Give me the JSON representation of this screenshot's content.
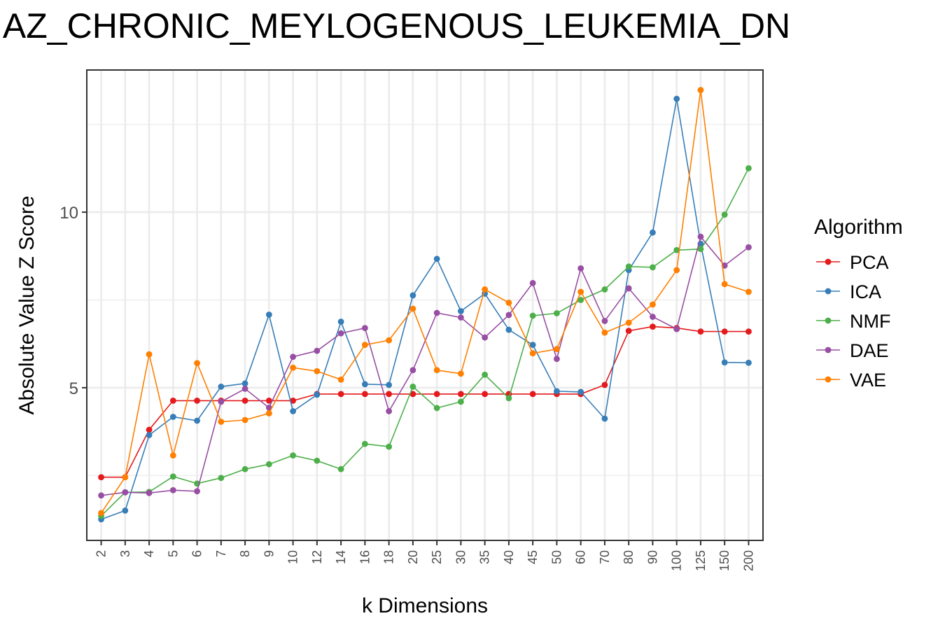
{
  "chart_data": {
    "type": "line",
    "title": "IAZ_CHRONIC_MEYLOGENOUS_LEUKEMIA_DN",
    "xlabel": "k Dimensions",
    "ylabel": "Absolute Value Z Score",
    "categories": [
      "2",
      "3",
      "4",
      "5",
      "6",
      "7",
      "8",
      "9",
      "10",
      "12",
      "14",
      "16",
      "18",
      "20",
      "25",
      "30",
      "35",
      "40",
      "45",
      "50",
      "60",
      "70",
      "80",
      "90",
      "100",
      "125",
      "150",
      "200"
    ],
    "y_ticks": [
      5,
      10
    ],
    "ylim": [
      0.65,
      14.05
    ],
    "grid": true,
    "legend": {
      "title": "Algorithm",
      "position": "right"
    },
    "series": [
      {
        "name": "PCA",
        "color": "#e41a1c",
        "values": [
          2.45,
          2.45,
          3.8,
          4.63,
          4.63,
          4.63,
          4.63,
          4.63,
          4.63,
          4.82,
          4.82,
          4.82,
          4.82,
          4.82,
          4.82,
          4.82,
          4.82,
          4.82,
          4.82,
          4.82,
          4.82,
          5.08,
          6.62,
          6.74,
          6.7,
          6.6,
          6.6,
          6.6
        ]
      },
      {
        "name": "ICA",
        "color": "#377eb8",
        "values": [
          1.25,
          1.5,
          3.65,
          4.17,
          4.06,
          5.03,
          5.12,
          7.08,
          4.33,
          4.8,
          6.88,
          5.1,
          5.08,
          7.63,
          8.67,
          7.18,
          7.68,
          6.65,
          6.22,
          4.9,
          4.88,
          4.12,
          8.35,
          9.42,
          13.23,
          9.1,
          5.72,
          5.71
        ]
      },
      {
        "name": "NMF",
        "color": "#4daf4a",
        "values": [
          1.35,
          2.02,
          2.03,
          2.47,
          2.27,
          2.43,
          2.68,
          2.82,
          3.07,
          2.92,
          2.68,
          3.4,
          3.32,
          5.03,
          4.42,
          4.6,
          5.37,
          4.7,
          7.05,
          7.12,
          7.5,
          7.8,
          8.45,
          8.43,
          8.92,
          8.95,
          9.93,
          11.25
        ]
      },
      {
        "name": "DAE",
        "color": "#984ea3",
        "values": [
          1.93,
          2.02,
          2.0,
          2.08,
          2.05,
          4.6,
          4.97,
          4.43,
          5.88,
          6.05,
          6.55,
          6.7,
          4.33,
          5.5,
          7.13,
          7.0,
          6.43,
          7.07,
          7.98,
          5.82,
          8.4,
          6.9,
          7.83,
          7.02,
          6.67,
          9.3,
          8.48,
          9.0
        ]
      },
      {
        "name": "VAE",
        "color": "#ff7f00",
        "values": [
          1.43,
          2.45,
          5.95,
          3.07,
          5.7,
          4.03,
          4.08,
          4.27,
          5.57,
          5.47,
          5.23,
          6.22,
          6.35,
          7.25,
          5.5,
          5.4,
          7.8,
          7.42,
          5.98,
          6.1,
          7.73,
          6.57,
          6.85,
          7.37,
          8.35,
          13.48,
          7.95,
          7.73
        ]
      }
    ]
  }
}
